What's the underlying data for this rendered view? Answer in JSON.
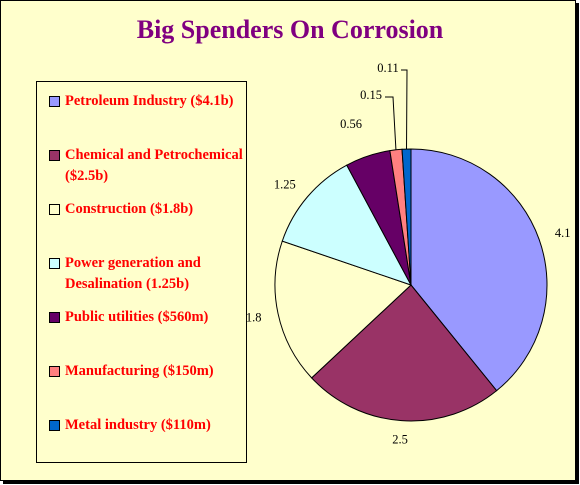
{
  "chart_data": {
    "type": "pie",
    "title": "Big Spenders On Corrosion",
    "legend_position": "left",
    "slices": [
      {
        "name": "Petroleum Industry ($4.1b)",
        "value": 4.1,
        "label": "4.1",
        "color": "#9999ff"
      },
      {
        "name": "Chemical and Petrochemical ($2.5b)",
        "value": 2.5,
        "label": "2.5",
        "color": "#993366"
      },
      {
        "name": "Construction ($1.8b)",
        "value": 1.8,
        "label": "1.8",
        "color": "#ffffcc"
      },
      {
        "name": "Power generation and Desalination (1.25b)",
        "value": 1.25,
        "label": "1.25",
        "color": "#ccffff"
      },
      {
        "name": "Public utilities ($560m)",
        "value": 0.56,
        "label": "0.56",
        "color": "#660066"
      },
      {
        "name": "Manufacturing ($150m)",
        "value": 0.15,
        "label": "0.15",
        "color": "#ff8080"
      },
      {
        "name": "Metal industry ($110m)",
        "value": 0.11,
        "label": "0.11",
        "color": "#0066cc"
      }
    ]
  }
}
